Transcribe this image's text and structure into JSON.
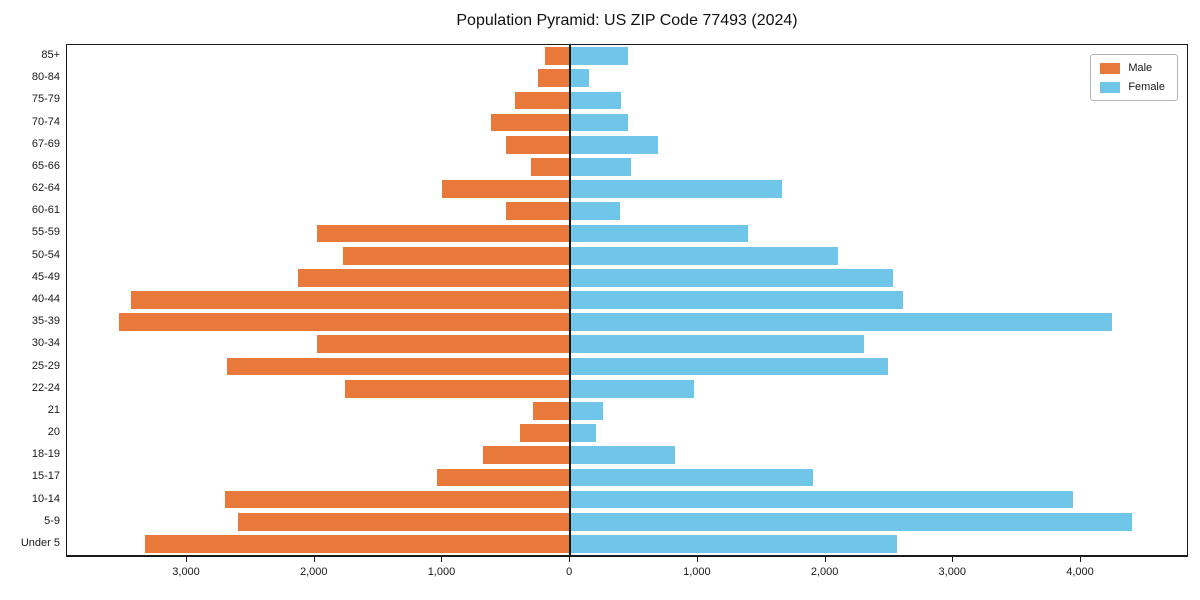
{
  "title": "Population Pyramid: US ZIP Code 77493 (2024)",
  "legend": [
    {
      "label": "Male",
      "color": "#e8793a"
    },
    {
      "label": "Female",
      "color": "#70c6e8"
    }
  ],
  "chart_data": {
    "type": "bar",
    "orientation": "horizontal-pyramid",
    "title": "Population Pyramid: US ZIP Code 77493 (2024)",
    "xlabel": "",
    "ylabel": "",
    "categories_top_to_bottom": [
      "85+",
      "80-84",
      "75-79",
      "70-74",
      "67-69",
      "65-66",
      "62-64",
      "60-61",
      "55-59",
      "50-54",
      "45-49",
      "40-44",
      "35-39",
      "30-34",
      "25-29",
      "22-24",
      "21",
      "20",
      "18-19",
      "15-17",
      "10-14",
      "5-9",
      "Under 5"
    ],
    "series": [
      {
        "name": "Male",
        "side": "left",
        "color": "#e8793a",
        "values": [
          200,
          250,
          430,
          620,
          500,
          310,
          1000,
          500,
          1980,
          1780,
          2130,
          3440,
          3530,
          1980,
          2690,
          1760,
          290,
          390,
          680,
          1040,
          2700,
          2600,
          3330
        ]
      },
      {
        "name": "Female",
        "side": "right",
        "color": "#70c6e8",
        "values": [
          450,
          150,
          400,
          450,
          690,
          480,
          1660,
          390,
          1390,
          2100,
          2530,
          2610,
          4240,
          2300,
          2490,
          970,
          260,
          200,
          820,
          1900,
          3940,
          4400,
          2560
        ]
      }
    ],
    "xticks": {
      "values": [
        -3000,
        -2000,
        -1000,
        0,
        1000,
        2000,
        3000,
        4000
      ],
      "labels": [
        "3,000",
        "2,000",
        "1,000",
        "0",
        "1,000",
        "2,000",
        "3,000",
        "4,000"
      ]
    },
    "xlim": [
      -3940,
      4830
    ],
    "zero_line": true,
    "grid": false,
    "legend_position": "upper right"
  }
}
